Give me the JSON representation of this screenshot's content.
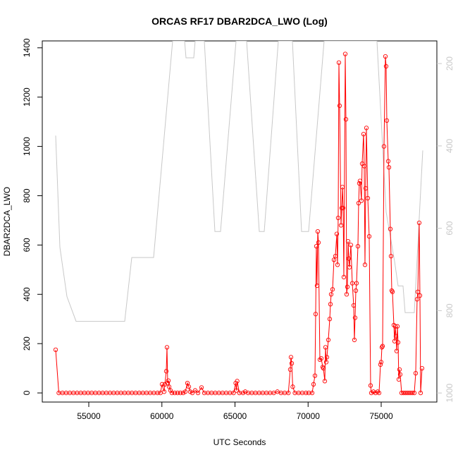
{
  "chart_data": {
    "type": "line",
    "title": "ORCAS RF17 DBAR2DCA_LWO (Log)",
    "xlabel": "UTC Seconds",
    "ylabel": "DBAR2DCA_LWO",
    "xlim": [
      51819,
      78807
    ],
    "xticks": [
      55000,
      60000,
      65000,
      70000,
      75000
    ],
    "ylim": [
      -37,
      1428
    ],
    "yticks": [
      0,
      200,
      400,
      600,
      800,
      1000,
      1200,
      1400
    ],
    "y2lim": [
      1022,
      145
    ],
    "y2ticks": [
      200,
      400,
      600,
      800,
      1000
    ],
    "series": [
      {
        "color": "#ff0000",
        "markers": true,
        "x": [
          52735,
          52950,
          53200,
          53450,
          53700,
          53950,
          54200,
          54450,
          54700,
          54950,
          55200,
          55450,
          55700,
          55950,
          56200,
          56450,
          56700,
          56950,
          57200,
          57450,
          57700,
          57950,
          58200,
          58450,
          58700,
          58950,
          59200,
          59450,
          59700,
          59900,
          60011,
          60156,
          60204,
          60300,
          60348,
          60397,
          60445,
          60493,
          60590,
          60686,
          60879,
          61072,
          61264,
          61457,
          61602,
          61746,
          61843,
          61939,
          62084,
          62276,
          62469,
          62710,
          62903,
          63150,
          63400,
          63650,
          63900,
          64150,
          64400,
          64650,
          64900,
          65050,
          65100,
          65150,
          65300,
          65550,
          65700,
          65900,
          66150,
          66400,
          66650,
          66900,
          67150,
          67400,
          67650,
          67900,
          68150,
          68400,
          68650,
          68780,
          68830,
          68880,
          68950,
          69100,
          69350,
          69600,
          69850,
          70050,
          70276,
          70372,
          70469,
          70517,
          70565,
          70613,
          70661,
          70709,
          70806,
          70902,
          70999,
          71047,
          71143,
          71192,
          71240,
          71288,
          71384,
          71481,
          71529,
          71577,
          71674,
          71770,
          71866,
          71963,
          72011,
          72059,
          72107,
          72156,
          72252,
          72300,
          72348,
          72396,
          72445,
          72541,
          72589,
          72637,
          72686,
          72734,
          72782,
          72830,
          72926,
          73023,
          73119,
          73167,
          73215,
          73264,
          73312,
          73408,
          73456,
          73504,
          73553,
          73649,
          73697,
          73794,
          73842,
          73890,
          73938,
          73987,
          74083,
          74179,
          74276,
          74324,
          74469,
          74613,
          74758,
          74854,
          74950,
          74998,
          75047,
          75095,
          75191,
          75288,
          75336,
          75384,
          75481,
          75529,
          75625,
          75673,
          75722,
          75770,
          75866,
          75914,
          75962,
          76011,
          76059,
          76107,
          76155,
          76203,
          76252,
          76300,
          76396,
          76541,
          76685,
          76830,
          76974,
          77119,
          77263,
          77360,
          77456,
          77504,
          77600,
          77649,
          77697,
          77793
        ],
        "values": [
          175,
          0,
          0,
          0,
          0,
          0,
          0,
          0,
          0,
          0,
          0,
          0,
          0,
          0,
          0,
          0,
          0,
          0,
          0,
          0,
          0,
          0,
          0,
          0,
          0,
          0,
          0,
          0,
          0,
          0,
          35,
          5,
          35,
          88,
          185,
          40,
          50,
          25,
          10,
          0,
          0,
          0,
          0,
          0,
          5,
          40,
          25,
          5,
          0,
          10,
          0,
          22,
          0,
          0,
          0,
          0,
          0,
          0,
          0,
          0,
          0,
          40,
          10,
          48,
          0,
          0,
          5,
          0,
          0,
          0,
          0,
          0,
          0,
          0,
          0,
          5,
          0,
          0,
          0,
          95,
          145,
          120,
          25,
          0,
          0,
          0,
          0,
          0,
          0,
          35,
          70,
          320,
          595,
          435,
          655,
          610,
          135,
          140,
          105,
          100,
          48,
          185,
          125,
          145,
          215,
          300,
          360,
          400,
          420,
          540,
          555,
          645,
          520,
          710,
          1340,
          1165,
          680,
          750,
          835,
          750,
          470,
          1375,
          1110,
          400,
          430,
          615,
          545,
          510,
          600,
          445,
          355,
          215,
          305,
          415,
          445,
          595,
          770,
          850,
          860,
          780,
          930,
          1050,
          920,
          520,
          830,
          1075,
          790,
          635,
          30,
          0,
          5,
          0,
          5,
          0,
          115,
          125,
          185,
          190,
          1000,
          1365,
          1325,
          1105,
          940,
          915,
          665,
          555,
          415,
          410,
          275,
          210,
          270,
          230,
          170,
          270,
          205,
          55,
          95,
          75,
          0,
          0,
          0,
          0,
          0,
          0,
          0,
          80,
          380,
          410,
          690,
          395,
          0,
          100
        ]
      },
      {
        "color": "#c8c8c8",
        "axis": "y2",
        "markers": false,
        "x": [
          52735,
          53024,
          53506,
          54132,
          57457,
          57939,
          59433,
          60734,
          61553,
          61650,
          62180,
          62276,
          62903,
          63626,
          64011,
          65072,
          65795,
          66662,
          67000,
          67963,
          68927,
          69553,
          70035,
          71095,
          74709,
          75336,
          75914,
          76155,
          76492,
          76637,
          77263,
          77842
        ],
        "values": [
          375,
          646,
          766,
          826,
          826,
          671,
          671,
          145,
          145,
          186,
          186,
          145,
          145,
          608,
          608,
          145,
          145,
          608,
          608,
          145,
          145,
          608,
          608,
          145,
          145,
          560,
          680,
          740,
          740,
          805,
          805,
          411
        ]
      }
    ]
  }
}
